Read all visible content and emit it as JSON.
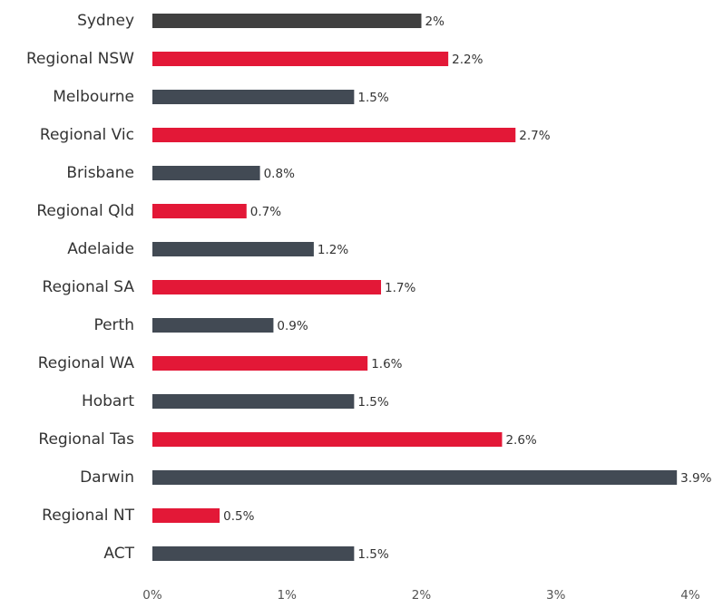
{
  "chart_data": {
    "type": "bar",
    "orientation": "horizontal",
    "categories": [
      "Sydney",
      "Regional NSW",
      "Melbourne",
      "Regional Vic",
      "Brisbane",
      "Regional Qld",
      "Adelaide",
      "Regional SA",
      "Perth",
      "Regional WA",
      "Hobart",
      "Regional Tas",
      "Darwin",
      "Regional NT",
      "ACT"
    ],
    "values": [
      2.0,
      2.2,
      1.5,
      2.7,
      0.8,
      0.7,
      1.2,
      1.7,
      0.9,
      1.6,
      1.5,
      2.6,
      3.9,
      0.5,
      1.5
    ],
    "value_labels": [
      "2%",
      "2.2%",
      "1.5%",
      "2.7%",
      "0.8%",
      "0.7%",
      "1.2%",
      "1.7%",
      "0.9%",
      "1.6%",
      "1.5%",
      "2.6%",
      "3.9%",
      "0.5%",
      "1.5%"
    ],
    "bar_colors": [
      "#404040",
      "#e31837",
      "#424a54",
      "#e31837",
      "#424a54",
      "#e31837",
      "#424a54",
      "#e31837",
      "#424a54",
      "#e31837",
      "#424a54",
      "#e31837",
      "#424a54",
      "#e31837",
      "#424a54"
    ],
    "x_ticks": [
      0,
      1,
      2,
      3,
      4
    ],
    "x_tick_labels": [
      "0%",
      "1%",
      "2%",
      "3%",
      "4%"
    ],
    "xlim": [
      0,
      4
    ],
    "title": "",
    "xlabel": "",
    "ylabel": "",
    "grid": false,
    "legend": "none"
  }
}
